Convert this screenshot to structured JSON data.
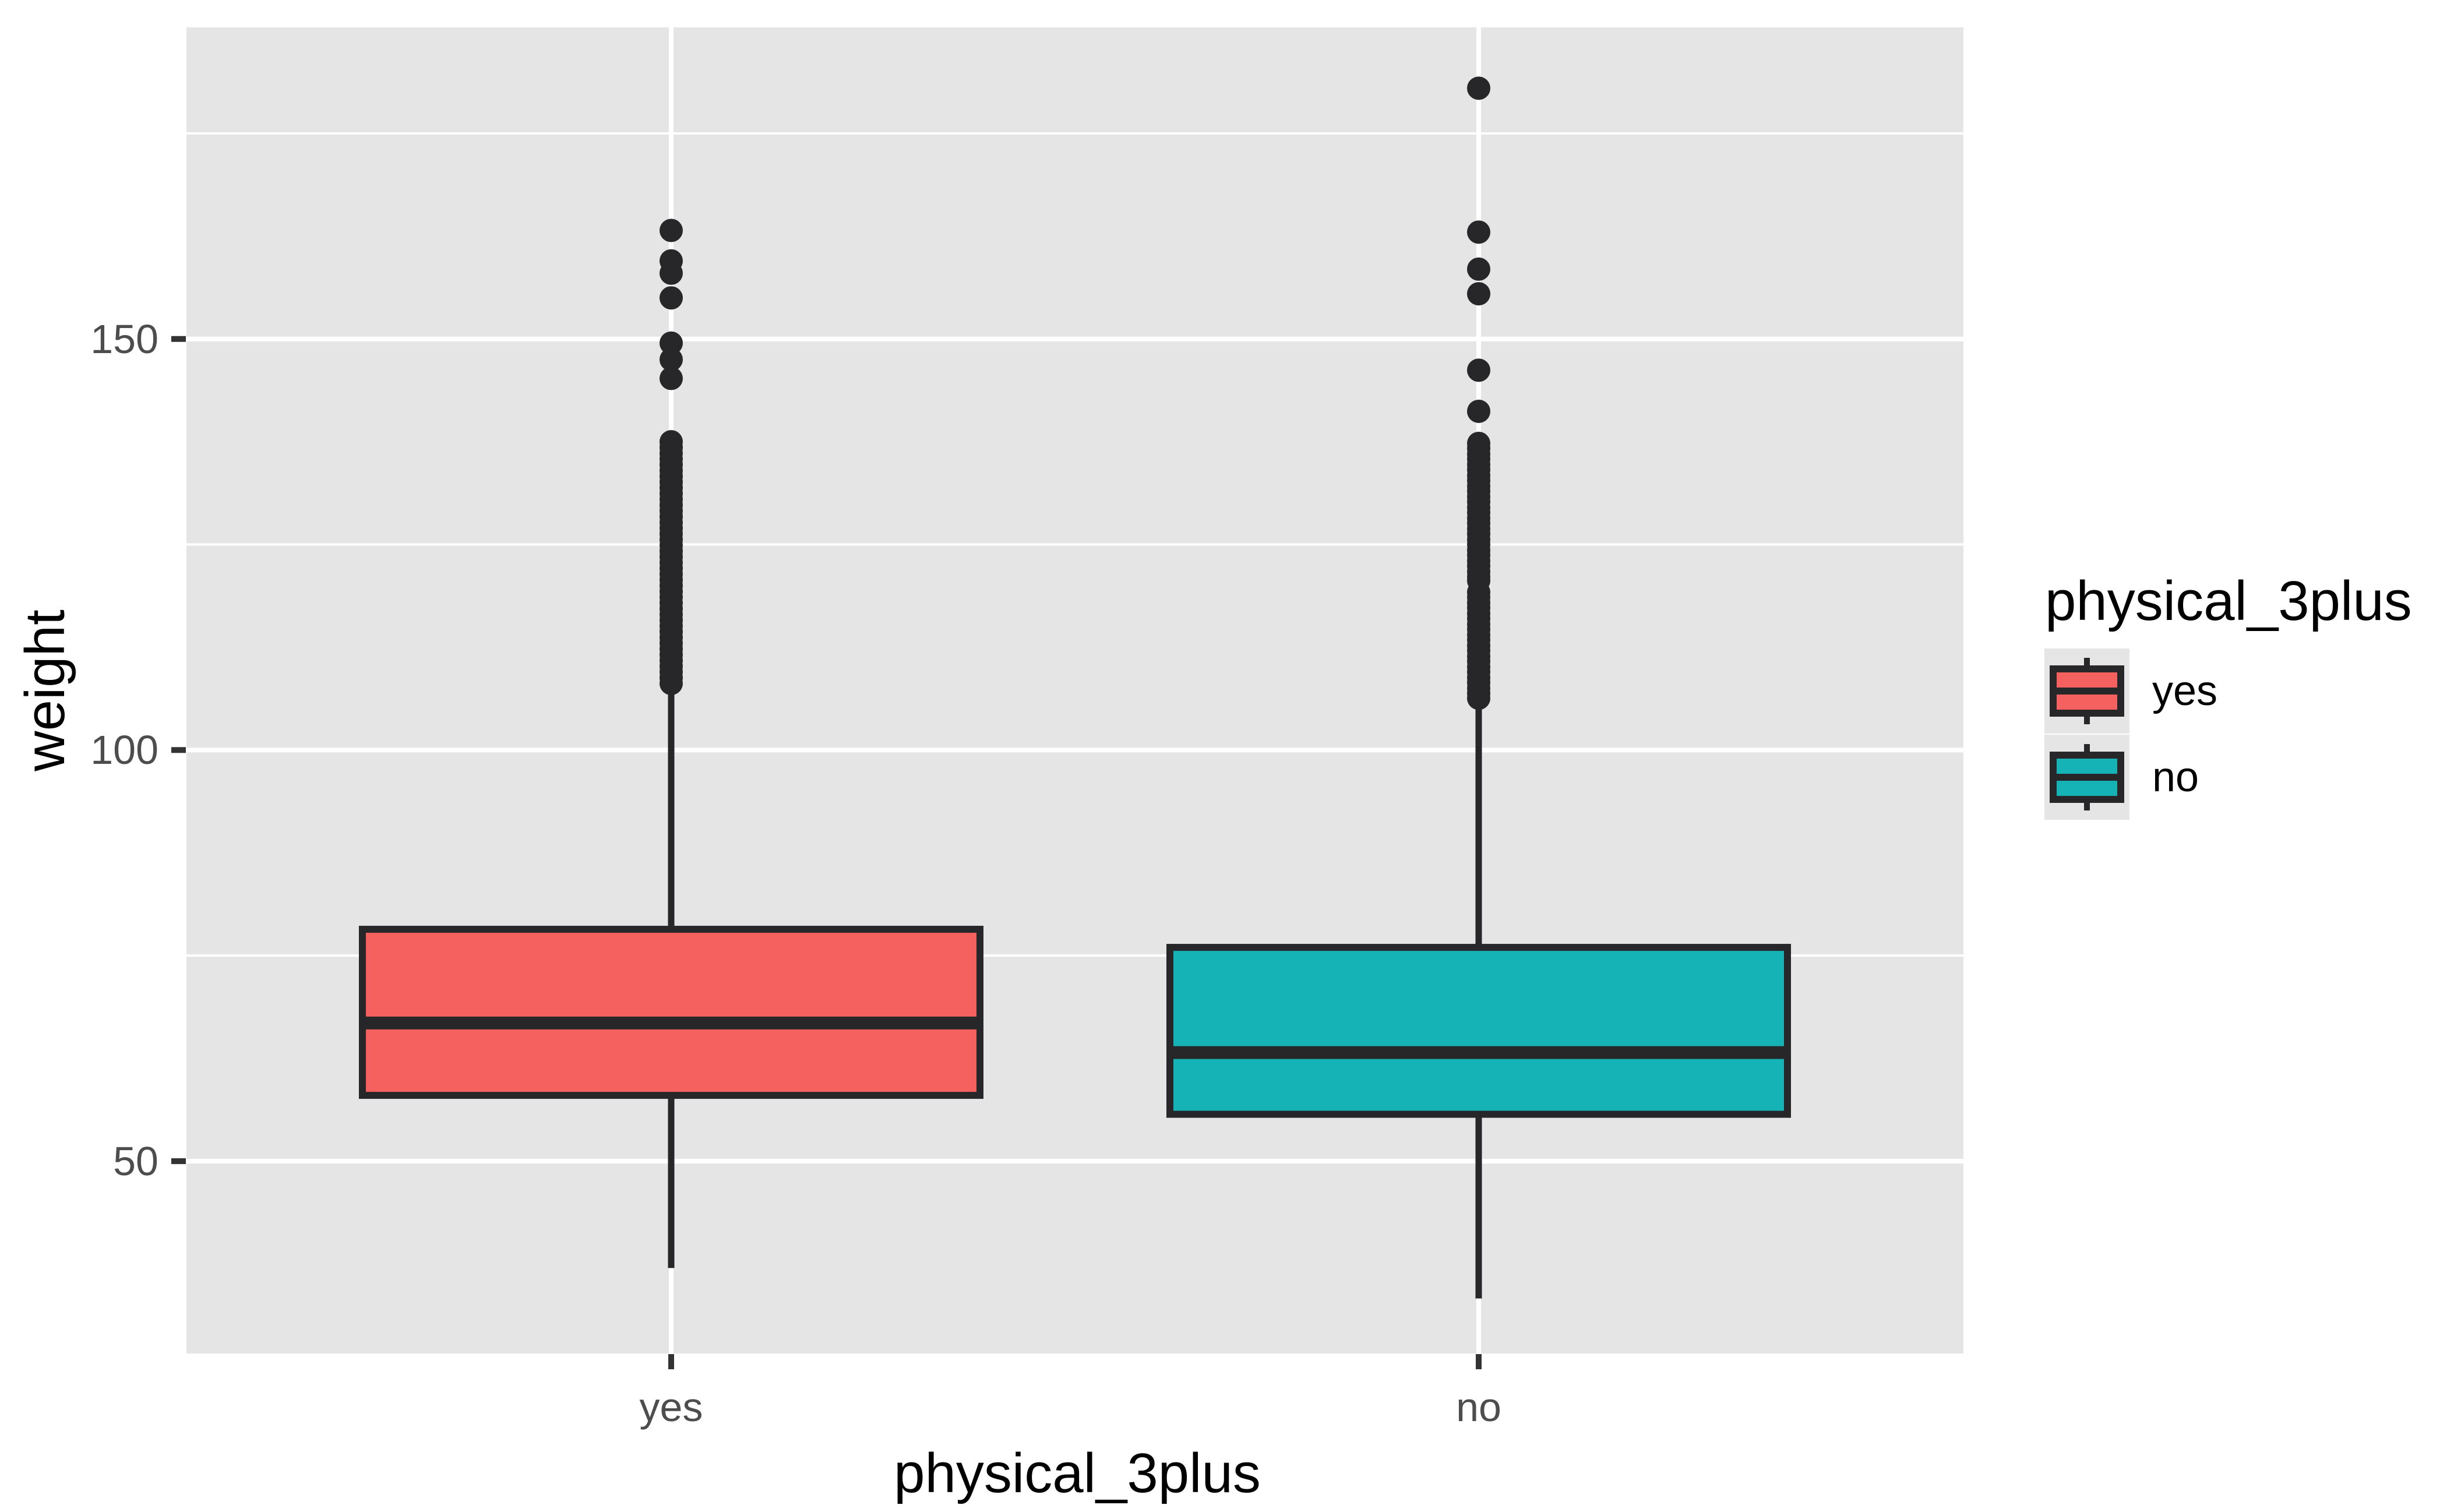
{
  "chart_data": {
    "type": "boxplot",
    "title": "",
    "xlabel": "physical_3plus",
    "ylabel": "weight",
    "categories": [
      "yes",
      "no"
    ],
    "y_axis": {
      "ticks": [
        {
          "value": 150,
          "label": "150"
        },
        {
          "value": 100,
          "label": "100"
        },
        {
          "value": 50,
          "label": "50"
        }
      ],
      "minor_ticks": [
        75,
        125,
        175
      ],
      "panel_range": [
        26.6,
        187.9
      ],
      "grid": true
    },
    "legend": {
      "title": "physical_3plus",
      "position": "right",
      "entries": [
        {
          "label": "yes",
          "color": "#F4615E"
        },
        {
          "label": "no",
          "color": "#16B3B6"
        }
      ]
    },
    "series": [
      {
        "name": "yes",
        "color": "#F4615E",
        "stats": {
          "whisker_low": 37.0,
          "q1": 58.0,
          "median": 66.8,
          "q3": 78.2,
          "whisker_high": 107.5
        },
        "outliers": [
          163.2,
          159.5,
          158.0,
          155.0,
          149.5,
          147.5,
          145.2,
          137.5,
          136.8,
          136.1,
          135.4,
          134.7,
          134.0,
          133.3,
          132.6,
          131.9,
          131.2,
          130.5,
          129.8,
          129.1,
          128.4,
          127.7,
          127.0,
          126.3,
          125.6,
          124.9,
          124.2,
          123.5,
          122.8,
          122.1,
          121.4,
          120.7,
          120.0,
          119.3,
          118.6,
          117.9,
          117.2,
          116.5,
          115.8,
          115.1,
          114.4,
          113.7,
          113.0,
          112.3,
          111.6,
          110.9,
          110.2,
          109.5,
          108.8,
          108.1
        ]
      },
      {
        "name": "no",
        "color": "#16B3B6",
        "stats": {
          "whisker_low": 33.3,
          "q1": 55.7,
          "median": 63.2,
          "q3": 76.0,
          "whisker_high": 105.5
        },
        "outliers": [
          180.5,
          163.0,
          158.5,
          155.5,
          146.2,
          141.2,
          137.3,
          136.7,
          136.0,
          135.4,
          134.7,
          134.1,
          133.4,
          132.8,
          132.1,
          131.5,
          130.8,
          130.2,
          129.5,
          128.9,
          128.2,
          127.6,
          126.9,
          126.3,
          125.6,
          125.0,
          124.3,
          123.7,
          123.0,
          122.4,
          121.7,
          121.1,
          120.6,
          119.2,
          118.6,
          117.9,
          117.3,
          116.6,
          116.0,
          115.3,
          114.7,
          114.0,
          113.4,
          112.7,
          112.1,
          111.4,
          110.8,
          110.1,
          109.5,
          108.8,
          108.2,
          107.5,
          106.9,
          106.3
        ]
      }
    ],
    "colors": {
      "page_bg": "#FFFFFF",
      "panel_bg": "#E5E5E5",
      "grid": "#FFFFFF",
      "stroke": "#272729",
      "tick_mark": "#333333",
      "tick_text": "#4D4D4D",
      "title_text": "#000000",
      "legend_key_bg": "#E5E5E5"
    }
  }
}
